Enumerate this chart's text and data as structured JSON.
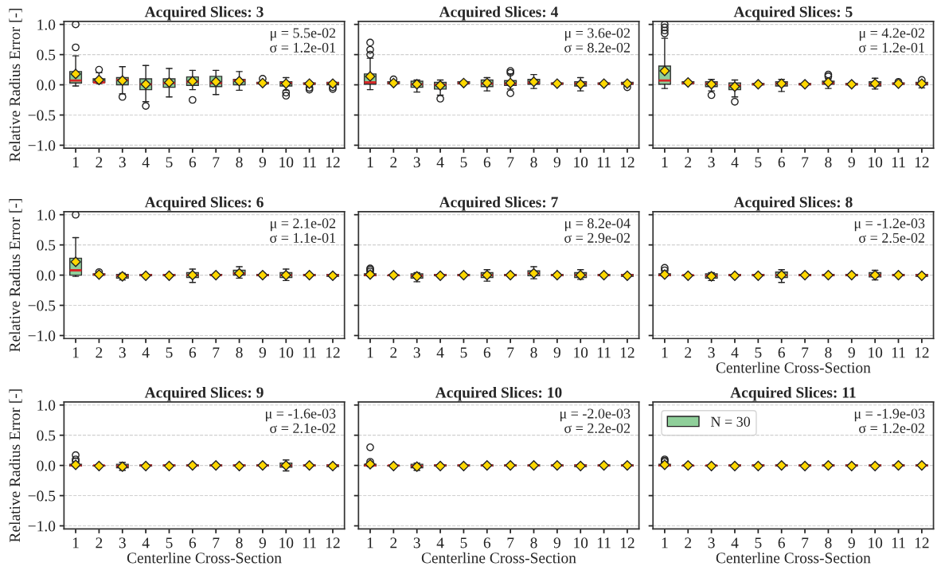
{
  "chart_data": [
    {
      "type": "box",
      "title": "Acquired Slices: 3",
      "ylabel": "Relative Radius Error [-]",
      "annotations": [
        "μ = 5.5e-02",
        "σ = 1.2e-01"
      ],
      "categories": [
        "1",
        "2",
        "3",
        "4",
        "5",
        "6",
        "7",
        "8",
        "9",
        "10",
        "11",
        "12"
      ],
      "ylim": [
        -1.05,
        1.05
      ],
      "yticks": [
        {
          "value": -1.0,
          "label": "−1.0"
        },
        {
          "value": -0.5,
          "label": "−0.5"
        },
        {
          "value": 0.0,
          "label": "0.0"
        },
        {
          "value": 0.5,
          "label": "0.5"
        },
        {
          "value": 1.0,
          "label": "1.0"
        }
      ],
      "grid": "y",
      "marker": "diamond",
      "series": [
        {
          "color": "#8fcf9a",
          "boxes": [
            {
              "low": -0.02,
              "q1": 0.03,
              "median": 0.07,
              "q3": 0.22,
              "high": 0.48,
              "mean": 0.18,
              "outliers": [
                0.62,
                1.0
              ]
            },
            {
              "low": 0.02,
              "q1": 0.04,
              "median": 0.04,
              "q3": 0.1,
              "high": 0.2,
              "mean": 0.08,
              "outliers": [
                0.25
              ]
            },
            {
              "low": -0.15,
              "q1": 0.0,
              "median": 0.08,
              "q3": 0.12,
              "high": 0.3,
              "mean": 0.07,
              "outliers": [
                -0.2
              ]
            },
            {
              "low": -0.28,
              "q1": -0.08,
              "median": 0.01,
              "q3": 0.1,
              "high": 0.32,
              "mean": 0.01,
              "outliers": [
                -0.35
              ]
            },
            {
              "low": -0.2,
              "q1": -0.04,
              "median": 0.03,
              "q3": 0.1,
              "high": 0.27,
              "mean": 0.04
            },
            {
              "low": -0.08,
              "q1": -0.01,
              "median": 0.05,
              "q3": 0.13,
              "high": 0.24,
              "mean": 0.06,
              "outliers": [
                -0.25
              ]
            },
            {
              "low": -0.16,
              "q1": -0.03,
              "median": 0.03,
              "q3": 0.14,
              "high": 0.24,
              "mean": 0.05
            },
            {
              "low": -0.09,
              "q1": 0.0,
              "median": 0.07,
              "q3": 0.09,
              "high": 0.22,
              "mean": 0.06
            },
            {
              "low": 0.01,
              "q1": 0.02,
              "median": 0.03,
              "q3": 0.04,
              "high": 0.05,
              "mean": 0.03,
              "outliers": [
                0.1
              ]
            },
            {
              "low": -0.09,
              "q1": -0.02,
              "median": 0.03,
              "q3": 0.05,
              "high": 0.12,
              "mean": 0.02,
              "outliers": [
                -0.13,
                -0.18
              ]
            },
            {
              "low": 0.0,
              "q1": 0.01,
              "median": 0.02,
              "q3": 0.03,
              "high": 0.04,
              "mean": 0.02,
              "outliers": [
                -0.05,
                -0.08
              ]
            },
            {
              "low": -0.02,
              "q1": 0.0,
              "median": 0.03,
              "q3": 0.04,
              "high": 0.05,
              "mean": 0.02,
              "outliers": [
                -0.04,
                -0.07
              ]
            }
          ]
        }
      ]
    },
    {
      "type": "box",
      "title": "Acquired Slices: 4",
      "annotations": [
        "μ = 3.6e-02",
        "σ = 8.2e-02"
      ],
      "categories": [
        "1",
        "2",
        "3",
        "4",
        "5",
        "6",
        "7",
        "8",
        "9",
        "10",
        "11",
        "12"
      ],
      "ylim": [
        -1.05,
        1.05
      ],
      "yticks": [
        {
          "value": -1.0,
          "label": null
        },
        {
          "value": -0.5,
          "label": null
        },
        {
          "value": 0.0,
          "label": null
        },
        {
          "value": 0.5,
          "label": null
        },
        {
          "value": 1.0,
          "label": null
        }
      ],
      "tick_labels": "x",
      "grid": "y",
      "marker": "diamond",
      "series": [
        {
          "color": "#8fcf9a",
          "boxes": [
            {
              "low": -0.08,
              "q1": 0.01,
              "median": 0.04,
              "q3": 0.18,
              "high": 0.44,
              "mean": 0.14,
              "outliers": [
                0.5,
                0.58,
                0.7
              ]
            },
            {
              "low": 0.01,
              "q1": 0.02,
              "median": 0.03,
              "q3": 0.05,
              "high": 0.07,
              "mean": 0.03,
              "outliers": [
                0.09
              ]
            },
            {
              "low": -0.12,
              "q1": -0.04,
              "median": 0.01,
              "q3": 0.06,
              "high": 0.08,
              "mean": 0.01
            },
            {
              "low": -0.17,
              "q1": -0.07,
              "median": 0.0,
              "q3": 0.04,
              "high": 0.08,
              "mean": -0.01,
              "outliers": [
                -0.23
              ]
            },
            {
              "low": 0.01,
              "q1": 0.02,
              "median": 0.03,
              "q3": 0.05,
              "high": 0.06,
              "mean": 0.03
            },
            {
              "low": -0.1,
              "q1": -0.03,
              "median": 0.02,
              "q3": 0.08,
              "high": 0.12,
              "mean": 0.03
            },
            {
              "low": -0.07,
              "q1": -0.01,
              "median": 0.02,
              "q3": 0.07,
              "high": 0.18,
              "mean": 0.03,
              "outliers": [
                -0.14,
                0.2,
                0.23
              ]
            },
            {
              "low": -0.06,
              "q1": 0.01,
              "median": 0.04,
              "q3": 0.09,
              "high": 0.17,
              "mean": 0.05
            },
            {
              "low": 0.0,
              "q1": 0.01,
              "median": 0.02,
              "q3": 0.03,
              "high": 0.04,
              "mean": 0.02
            },
            {
              "low": -0.1,
              "q1": -0.02,
              "median": 0.02,
              "q3": 0.05,
              "high": 0.12,
              "mean": 0.01
            },
            {
              "low": 0.0,
              "q1": 0.01,
              "median": 0.02,
              "q3": 0.03,
              "high": 0.04,
              "mean": 0.02
            },
            {
              "low": -0.02,
              "q1": 0.01,
              "median": 0.02,
              "q3": 0.04,
              "high": 0.05,
              "mean": 0.02,
              "outliers": [
                -0.04
              ]
            }
          ]
        }
      ]
    },
    {
      "type": "box",
      "title": "Acquired Slices: 5",
      "annotations": [
        "μ = 4.2e-02",
        "σ = 1.2e-01"
      ],
      "categories": [
        "1",
        "2",
        "3",
        "4",
        "5",
        "6",
        "7",
        "8",
        "9",
        "10",
        "11",
        "12"
      ],
      "ylim": [
        -1.05,
        1.05
      ],
      "yticks": [
        {
          "value": -1.0,
          "label": null
        },
        {
          "value": -0.5,
          "label": null
        },
        {
          "value": 0.0,
          "label": null
        },
        {
          "value": 0.5,
          "label": null
        },
        {
          "value": 1.0,
          "label": null
        }
      ],
      "tick_labels": "x",
      "grid": "y",
      "marker": "diamond",
      "series": [
        {
          "color": "#8fcf9a",
          "boxes": [
            {
              "low": -0.06,
              "q1": 0.01,
              "median": 0.07,
              "q3": 0.31,
              "high": 0.77,
              "mean": 0.23,
              "outliers": [
                0.85,
                0.9,
                0.95,
                1.0
              ]
            },
            {
              "low": 0.01,
              "q1": 0.02,
              "median": 0.03,
              "q3": 0.05,
              "high": 0.06,
              "mean": 0.04
            },
            {
              "low": -0.1,
              "q1": -0.03,
              "median": 0.02,
              "q3": 0.05,
              "high": 0.09,
              "mean": 0.01,
              "outliers": [
                -0.17
              ]
            },
            {
              "low": -0.2,
              "q1": -0.08,
              "median": -0.01,
              "q3": 0.03,
              "high": 0.08,
              "mean": -0.03,
              "outliers": [
                -0.28
              ]
            },
            {
              "low": -0.01,
              "q1": 0.0,
              "median": 0.01,
              "q3": 0.02,
              "high": 0.03,
              "mean": 0.01
            },
            {
              "low": -0.11,
              "q1": -0.02,
              "median": 0.02,
              "q3": 0.05,
              "high": 0.09,
              "mean": 0.02
            },
            {
              "low": 0.0,
              "q1": 0.0,
              "median": 0.01,
              "q3": 0.02,
              "high": 0.03,
              "mean": 0.01
            },
            {
              "low": -0.06,
              "q1": 0.01,
              "median": 0.03,
              "q3": 0.06,
              "high": 0.1,
              "mean": 0.04,
              "outliers": [
                0.14,
                0.17
              ]
            },
            {
              "low": -0.01,
              "q1": 0.0,
              "median": 0.01,
              "q3": 0.02,
              "high": 0.03,
              "mean": 0.01
            },
            {
              "low": -0.07,
              "q1": -0.02,
              "median": 0.01,
              "q3": 0.05,
              "high": 0.11,
              "mean": 0.02
            },
            {
              "low": 0.0,
              "q1": 0.01,
              "median": 0.02,
              "q3": 0.03,
              "high": 0.04,
              "mean": 0.02,
              "outliers": [
                0.05
              ]
            },
            {
              "low": -0.05,
              "q1": 0.0,
              "median": 0.02,
              "q3": 0.04,
              "high": 0.05,
              "mean": 0.02,
              "outliers": [
                0.08
              ]
            }
          ]
        }
      ]
    },
    {
      "type": "box",
      "title": "Acquired Slices: 6",
      "ylabel": "Relative Radius Error [-]",
      "annotations": [
        "μ = 2.1e-02",
        "σ = 1.1e-01"
      ],
      "categories": [
        "1",
        "2",
        "3",
        "4",
        "5",
        "6",
        "7",
        "8",
        "9",
        "10",
        "11",
        "12"
      ],
      "ylim": [
        -1.05,
        1.05
      ],
      "yticks": [
        {
          "value": -1.0,
          "label": "−1.0"
        },
        {
          "value": -0.5,
          "label": "−0.5"
        },
        {
          "value": 0.0,
          "label": "0.0"
        },
        {
          "value": 0.5,
          "label": "0.5"
        },
        {
          "value": 1.0,
          "label": "1.0"
        }
      ],
      "grid": "y",
      "marker": "diamond",
      "series": [
        {
          "color": "#8fcf9a",
          "boxes": [
            {
              "low": -0.02,
              "q1": 0.0,
              "median": 0.08,
              "q3": 0.28,
              "high": 0.62,
              "mean": 0.22,
              "outliers": [
                1.0
              ]
            },
            {
              "low": -0.01,
              "q1": 0.0,
              "median": 0.01,
              "q3": 0.02,
              "high": 0.03,
              "mean": 0.01,
              "outliers": [
                0.05
              ]
            },
            {
              "low": -0.08,
              "q1": -0.05,
              "median": -0.01,
              "q3": 0.01,
              "high": 0.03,
              "mean": -0.02
            },
            {
              "low": -0.02,
              "q1": -0.01,
              "median": 0.0,
              "q3": 0.01,
              "high": 0.01,
              "mean": -0.01
            },
            {
              "low": -0.02,
              "q1": -0.01,
              "median": 0.0,
              "q3": 0.01,
              "high": 0.01,
              "mean": -0.01
            },
            {
              "low": -0.12,
              "q1": -0.04,
              "median": 0.0,
              "q3": 0.04,
              "high": 0.1,
              "mean": 0.0
            },
            {
              "low": -0.01,
              "q1": 0.0,
              "median": 0.0,
              "q3": 0.01,
              "high": 0.01,
              "mean": 0.0
            },
            {
              "low": -0.05,
              "q1": 0.0,
              "median": 0.03,
              "q3": 0.08,
              "high": 0.14,
              "mean": 0.03
            },
            {
              "low": -0.03,
              "q1": -0.01,
              "median": 0.0,
              "q3": 0.01,
              "high": 0.03,
              "mean": 0.0
            },
            {
              "low": -0.09,
              "q1": -0.04,
              "median": 0.0,
              "q3": 0.04,
              "high": 0.1,
              "mean": 0.0
            },
            {
              "low": -0.02,
              "q1": -0.01,
              "median": 0.0,
              "q3": 0.01,
              "high": 0.02,
              "mean": 0.0
            },
            {
              "low": -0.04,
              "q1": -0.02,
              "median": 0.0,
              "q3": 0.01,
              "high": 0.02,
              "mean": -0.01
            }
          ]
        }
      ]
    },
    {
      "type": "box",
      "title": "Acquired Slices: 7",
      "annotations": [
        "μ = 8.2e-04",
        "σ = 2.9e-02"
      ],
      "categories": [
        "1",
        "2",
        "3",
        "4",
        "5",
        "6",
        "7",
        "8",
        "9",
        "10",
        "11",
        "12"
      ],
      "ylim": [
        -1.05,
        1.05
      ],
      "yticks": [
        {
          "value": -1.0,
          "label": null
        },
        {
          "value": -0.5,
          "label": null
        },
        {
          "value": 0.0,
          "label": null
        },
        {
          "value": 0.5,
          "label": null
        },
        {
          "value": 1.0,
          "label": null
        }
      ],
      "tick_labels": "x",
      "grid": "y",
      "marker": "diamond",
      "series": [
        {
          "color": "#8fcf9a",
          "boxes": [
            {
              "low": -0.02,
              "q1": -0.01,
              "median": 0.0,
              "q3": 0.02,
              "high": 0.04,
              "mean": 0.01,
              "outliers": [
                0.06,
                0.09,
                0.11
              ]
            },
            {
              "low": -0.01,
              "q1": -0.01,
              "median": 0.0,
              "q3": 0.0,
              "high": 0.01,
              "mean": 0.0
            },
            {
              "low": -0.11,
              "q1": -0.05,
              "median": -0.01,
              "q3": 0.02,
              "high": 0.04,
              "mean": -0.02
            },
            {
              "low": -0.02,
              "q1": -0.01,
              "median": 0.0,
              "q3": 0.01,
              "high": 0.01,
              "mean": -0.01
            },
            {
              "low": -0.01,
              "q1": -0.01,
              "median": 0.0,
              "q3": 0.01,
              "high": 0.01,
              "mean": 0.0
            },
            {
              "low": -0.1,
              "q1": -0.04,
              "median": 0.0,
              "q3": 0.04,
              "high": 0.09,
              "mean": 0.0
            },
            {
              "low": -0.01,
              "q1": -0.01,
              "median": 0.0,
              "q3": 0.01,
              "high": 0.01,
              "mean": 0.0
            },
            {
              "low": -0.06,
              "q1": -0.01,
              "median": 0.03,
              "q3": 0.07,
              "high": 0.14,
              "mean": 0.03
            },
            {
              "low": -0.03,
              "q1": -0.01,
              "median": 0.0,
              "q3": 0.01,
              "high": 0.03,
              "mean": 0.0
            },
            {
              "low": -0.07,
              "q1": -0.04,
              "median": 0.0,
              "q3": 0.04,
              "high": 0.09,
              "mean": 0.0
            },
            {
              "low": -0.01,
              "q1": -0.01,
              "median": 0.0,
              "q3": 0.01,
              "high": 0.01,
              "mean": 0.0
            },
            {
              "low": -0.03,
              "q1": -0.02,
              "median": 0.0,
              "q3": 0.01,
              "high": 0.02,
              "mean": -0.01
            }
          ]
        }
      ]
    },
    {
      "type": "box",
      "title": "Acquired Slices: 8",
      "xlabel": "Centerline Cross-Section",
      "annotations": [
        "μ = -1.2e-03",
        "σ = 2.5e-02"
      ],
      "categories": [
        "1",
        "2",
        "3",
        "4",
        "5",
        "6",
        "7",
        "8",
        "9",
        "10",
        "11",
        "12"
      ],
      "ylim": [
        -1.05,
        1.05
      ],
      "yticks": [
        {
          "value": -1.0,
          "label": null
        },
        {
          "value": -0.5,
          "label": null
        },
        {
          "value": 0.0,
          "label": null
        },
        {
          "value": 0.5,
          "label": null
        },
        {
          "value": 1.0,
          "label": null
        }
      ],
      "tick_labels": "x",
      "grid": "y",
      "marker": "diamond",
      "series": [
        {
          "color": "#8fcf9a",
          "boxes": [
            {
              "low": -0.02,
              "q1": -0.01,
              "median": 0.0,
              "q3": 0.02,
              "high": 0.04,
              "mean": 0.01,
              "outliers": [
                0.08,
                0.12
              ]
            },
            {
              "low": -0.02,
              "q1": -0.01,
              "median": 0.0,
              "q3": 0.0,
              "high": 0.01,
              "mean": -0.01
            },
            {
              "low": -0.09,
              "q1": -0.05,
              "median": -0.01,
              "q3": 0.02,
              "high": 0.04,
              "mean": -0.02
            },
            {
              "low": -0.02,
              "q1": -0.01,
              "median": 0.0,
              "q3": 0.01,
              "high": 0.01,
              "mean": -0.01
            },
            {
              "low": -0.02,
              "q1": -0.01,
              "median": 0.0,
              "q3": 0.01,
              "high": 0.01,
              "mean": -0.01
            },
            {
              "low": -0.12,
              "q1": -0.04,
              "median": 0.0,
              "q3": 0.05,
              "high": 0.09,
              "mean": 0.0
            },
            {
              "low": -0.01,
              "q1": -0.01,
              "median": 0.0,
              "q3": 0.01,
              "high": 0.01,
              "mean": 0.0
            },
            {
              "low": -0.01,
              "q1": -0.01,
              "median": 0.0,
              "q3": 0.01,
              "high": 0.01,
              "mean": 0.0
            },
            {
              "low": -0.02,
              "q1": -0.01,
              "median": 0.0,
              "q3": 0.01,
              "high": 0.02,
              "mean": 0.0
            },
            {
              "low": -0.08,
              "q1": -0.03,
              "median": 0.0,
              "q3": 0.04,
              "high": 0.08,
              "mean": 0.0
            },
            {
              "low": -0.01,
              "q1": -0.01,
              "median": 0.0,
              "q3": 0.01,
              "high": 0.01,
              "mean": 0.0
            },
            {
              "low": -0.03,
              "q1": -0.02,
              "median": 0.0,
              "q3": 0.01,
              "high": 0.02,
              "mean": -0.01
            }
          ]
        }
      ]
    },
    {
      "type": "box",
      "title": "Acquired Slices: 9",
      "xlabel": "Centerline Cross-Section",
      "ylabel": "Relative Radius Error [-]",
      "annotations": [
        "μ = -1.6e-03",
        "σ = 2.1e-02"
      ],
      "categories": [
        "1",
        "2",
        "3",
        "4",
        "5",
        "6",
        "7",
        "8",
        "9",
        "10",
        "11",
        "12"
      ],
      "ylim": [
        -1.05,
        1.05
      ],
      "yticks": [
        {
          "value": -1.0,
          "label": "−1.0"
        },
        {
          "value": -0.5,
          "label": "−0.5"
        },
        {
          "value": 0.0,
          "label": "0.0"
        },
        {
          "value": 0.5,
          "label": "0.5"
        },
        {
          "value": 1.0,
          "label": "1.0"
        }
      ],
      "grid": "y",
      "marker": "diamond",
      "series": [
        {
          "color": "#8fcf9a",
          "boxes": [
            {
              "low": -0.02,
              "q1": -0.01,
              "median": 0.0,
              "q3": 0.02,
              "high": 0.04,
              "mean": 0.01,
              "outliers": [
                0.07,
                0.1,
                0.17
              ]
            },
            {
              "low": -0.01,
              "q1": -0.01,
              "median": 0.0,
              "q3": 0.0,
              "high": 0.01,
              "mean": -0.01
            },
            {
              "low": -0.08,
              "q1": -0.04,
              "median": -0.01,
              "q3": 0.02,
              "high": 0.05,
              "mean": -0.02
            },
            {
              "low": -0.02,
              "q1": -0.01,
              "median": 0.0,
              "q3": 0.01,
              "high": 0.01,
              "mean": -0.01
            },
            {
              "low": -0.01,
              "q1": -0.01,
              "median": 0.0,
              "q3": 0.01,
              "high": 0.01,
              "mean": -0.01
            },
            {
              "low": -0.02,
              "q1": -0.01,
              "median": 0.0,
              "q3": 0.01,
              "high": 0.02,
              "mean": 0.0
            },
            {
              "low": -0.01,
              "q1": -0.01,
              "median": 0.0,
              "q3": 0.01,
              "high": 0.01,
              "mean": 0.0
            },
            {
              "low": -0.02,
              "q1": -0.01,
              "median": 0.0,
              "q3": 0.01,
              "high": 0.01,
              "mean": -0.01
            },
            {
              "low": -0.01,
              "q1": -0.01,
              "median": 0.0,
              "q3": 0.01,
              "high": 0.01,
              "mean": 0.0
            },
            {
              "low": -0.09,
              "q1": -0.03,
              "median": 0.0,
              "q3": 0.04,
              "high": 0.09,
              "mean": 0.0
            },
            {
              "low": -0.02,
              "q1": -0.01,
              "median": 0.0,
              "q3": 0.01,
              "high": 0.02,
              "mean": 0.0
            },
            {
              "low": -0.04,
              "q1": -0.02,
              "median": 0.0,
              "q3": 0.01,
              "high": 0.02,
              "mean": -0.01
            }
          ]
        }
      ]
    },
    {
      "type": "box",
      "title": "Acquired Slices: 10",
      "xlabel": "Centerline Cross-Section",
      "annotations": [
        "μ = -2.0e-03",
        "σ = 2.2e-02"
      ],
      "categories": [
        "1",
        "2",
        "3",
        "4",
        "5",
        "6",
        "7",
        "8",
        "9",
        "10",
        "11",
        "12"
      ],
      "ylim": [
        -1.05,
        1.05
      ],
      "yticks": [
        {
          "value": -1.0,
          "label": null
        },
        {
          "value": -0.5,
          "label": null
        },
        {
          "value": 0.0,
          "label": null
        },
        {
          "value": 0.5,
          "label": null
        },
        {
          "value": 1.0,
          "label": null
        }
      ],
      "tick_labels": "x",
      "grid": "y",
      "marker": "diamond",
      "series": [
        {
          "color": "#8fcf9a",
          "boxes": [
            {
              "low": -0.02,
              "q1": -0.01,
              "median": 0.0,
              "q3": 0.02,
              "high": 0.03,
              "mean": 0.02,
              "outliers": [
                0.06,
                0.3
              ]
            },
            {
              "low": -0.01,
              "q1": -0.01,
              "median": 0.0,
              "q3": 0.0,
              "high": 0.01,
              "mean": -0.01
            },
            {
              "low": -0.08,
              "q1": -0.04,
              "median": -0.01,
              "q3": 0.02,
              "high": 0.04,
              "mean": -0.02
            },
            {
              "low": -0.02,
              "q1": -0.01,
              "median": 0.0,
              "q3": 0.01,
              "high": 0.01,
              "mean": -0.01
            },
            {
              "low": -0.01,
              "q1": -0.01,
              "median": 0.0,
              "q3": 0.01,
              "high": 0.01,
              "mean": -0.01
            },
            {
              "low": -0.02,
              "q1": -0.01,
              "median": 0.0,
              "q3": 0.01,
              "high": 0.02,
              "mean": 0.0
            },
            {
              "low": -0.01,
              "q1": -0.01,
              "median": 0.0,
              "q3": 0.01,
              "high": 0.01,
              "mean": 0.0
            },
            {
              "low": -0.01,
              "q1": -0.01,
              "median": 0.0,
              "q3": 0.01,
              "high": 0.01,
              "mean": 0.0
            },
            {
              "low": -0.02,
              "q1": -0.01,
              "median": 0.0,
              "q3": 0.01,
              "high": 0.02,
              "mean": 0.0
            },
            {
              "low": -0.03,
              "q1": -0.02,
              "median": 0.0,
              "q3": 0.01,
              "high": 0.02,
              "mean": -0.01
            },
            {
              "low": -0.01,
              "q1": -0.01,
              "median": 0.0,
              "q3": 0.01,
              "high": 0.01,
              "mean": 0.0
            },
            {
              "low": -0.02,
              "q1": -0.01,
              "median": 0.0,
              "q3": 0.01,
              "high": 0.02,
              "mean": 0.0
            }
          ]
        }
      ]
    },
    {
      "type": "box",
      "title": "Acquired Slices: 11",
      "xlabel": "Centerline Cross-Section",
      "annotations": [
        "μ = -1.9e-03",
        "σ = 1.2e-02"
      ],
      "categories": [
        "1",
        "2",
        "3",
        "4",
        "5",
        "6",
        "7",
        "8",
        "9",
        "10",
        "11",
        "12"
      ],
      "ylim": [
        -1.05,
        1.05
      ],
      "yticks": [
        {
          "value": -1.0,
          "label": null
        },
        {
          "value": -0.5,
          "label": null
        },
        {
          "value": 0.0,
          "label": null
        },
        {
          "value": 0.5,
          "label": null
        },
        {
          "value": 1.0,
          "label": null
        }
      ],
      "tick_labels": "x",
      "grid": "y",
      "marker": "diamond",
      "legend": "top left",
      "series": [
        {
          "name": "N = 30",
          "color": "#8fcf9a",
          "boxes": [
            {
              "low": -0.02,
              "q1": -0.01,
              "median": 0.0,
              "q3": 0.02,
              "high": 0.04,
              "mean": 0.01,
              "outliers": [
                0.06,
                0.08,
                0.1
              ]
            },
            {
              "low": -0.01,
              "q1": -0.01,
              "median": 0.0,
              "q3": 0.0,
              "high": 0.01,
              "mean": 0.0
            },
            {
              "low": -0.02,
              "q1": -0.01,
              "median": 0.0,
              "q3": 0.0,
              "high": 0.01,
              "mean": -0.01
            },
            {
              "low": -0.02,
              "q1": -0.01,
              "median": 0.0,
              "q3": 0.01,
              "high": 0.01,
              "mean": -0.01
            },
            {
              "low": -0.02,
              "q1": -0.01,
              "median": 0.0,
              "q3": 0.01,
              "high": 0.01,
              "mean": -0.01
            },
            {
              "low": -0.01,
              "q1": -0.01,
              "median": 0.0,
              "q3": 0.01,
              "high": 0.01,
              "mean": 0.0
            },
            {
              "low": -0.01,
              "q1": -0.01,
              "median": 0.0,
              "q3": 0.01,
              "high": 0.01,
              "mean": -0.01
            },
            {
              "low": -0.01,
              "q1": -0.01,
              "median": 0.0,
              "q3": 0.01,
              "high": 0.01,
              "mean": 0.0
            },
            {
              "low": -0.02,
              "q1": -0.01,
              "median": 0.0,
              "q3": 0.01,
              "high": 0.02,
              "mean": -0.01
            },
            {
              "low": -0.02,
              "q1": -0.01,
              "median": 0.0,
              "q3": 0.01,
              "high": 0.02,
              "mean": -0.01
            },
            {
              "low": -0.02,
              "q1": -0.01,
              "median": 0.0,
              "q3": 0.01,
              "high": 0.02,
              "mean": 0.0
            },
            {
              "low": -0.01,
              "q1": -0.01,
              "median": 0.0,
              "q3": 0.01,
              "high": 0.02,
              "mean": 0.0
            }
          ]
        }
      ]
    }
  ]
}
